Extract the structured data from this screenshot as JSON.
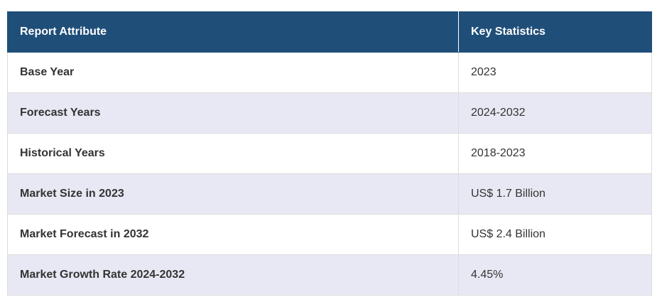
{
  "table": {
    "headers": [
      "Report Attribute",
      "Key Statistics"
    ],
    "rows": [
      {
        "attribute": "Base Year",
        "value": "2023"
      },
      {
        "attribute": "Forecast Years",
        "value": "2024-2032"
      },
      {
        "attribute": "Historical Years",
        "value": "2018-2023"
      },
      {
        "attribute": "Market Size in 2023",
        "value": "US$ 1.7 Billion"
      },
      {
        "attribute": "Market Forecast in 2032",
        "value": "US$ 2.4 Billion"
      },
      {
        "attribute": "Market Growth Rate 2024-2032",
        "value": "4.45%"
      }
    ]
  },
  "colors": {
    "header_bg": "#1f4e79",
    "header_text": "#ffffff",
    "stripe_bg": "#e8e8f4",
    "row_bg": "#ffffff",
    "border": "#dcdcdc"
  }
}
